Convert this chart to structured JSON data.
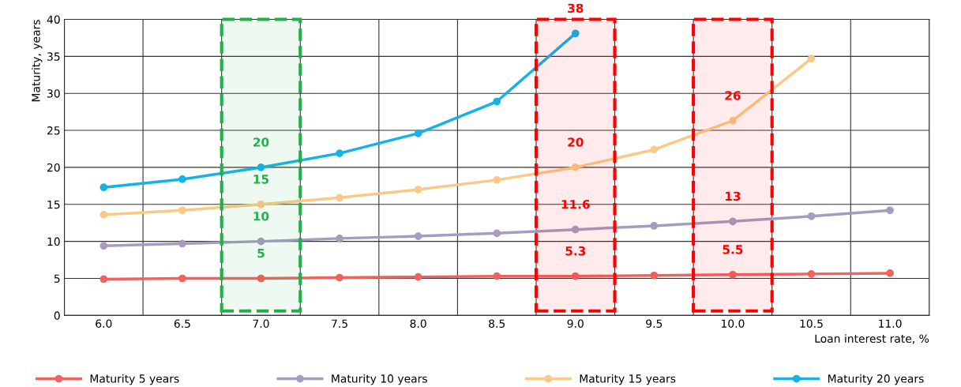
{
  "chart_data": {
    "type": "line",
    "x": [
      6.0,
      6.5,
      7.0,
      7.5,
      8.0,
      8.5,
      9.0,
      9.5,
      10.0,
      10.5,
      11.0
    ],
    "series": [
      {
        "name": "Maturity 5 years",
        "color": "#f0625f",
        "values": [
          4.9,
          5.0,
          5.0,
          5.1,
          5.2,
          5.3,
          5.3,
          5.4,
          5.5,
          5.6,
          5.7
        ]
      },
      {
        "name": "Maturity 10 years",
        "color": "#a89bc0",
        "values": [
          9.4,
          9.7,
          10.0,
          10.4,
          10.7,
          11.1,
          11.6,
          12.1,
          12.7,
          13.4,
          14.2
        ]
      },
      {
        "name": "Maturity 15 years",
        "color": "#fbc985",
        "values": [
          13.6,
          14.2,
          15.0,
          15.9,
          17.0,
          18.3,
          20.0,
          22.4,
          26.3,
          34.7,
          null
        ]
      },
      {
        "name": "Maturity 20 years",
        "color": "#13b2e8",
        "values": [
          17.3,
          18.4,
          20.0,
          21.9,
          24.6,
          28.9,
          38.1,
          null,
          null,
          null,
          null
        ]
      }
    ],
    "xlabel": "Loan interest rate, %",
    "ylabel": "Maturity, years",
    "xlim": [
      5.75,
      11.25
    ],
    "xticks": [
      {
        "value": 5.75,
        "label": null
      },
      {
        "value": 6,
        "label": "6.0"
      },
      {
        "value": 6.25,
        "label": null
      },
      6.5,
      {
        "value": 6.75,
        "label": null
      },
      {
        "value": 7,
        "label": "7.0"
      },
      {
        "value": 7.25,
        "label": null
      },
      7.5,
      {
        "value": 7.75,
        "label": null
      },
      {
        "value": 8,
        "label": "8.0"
      },
      {
        "value": 8.25,
        "label": null
      },
      8.5,
      {
        "value": 8.75,
        "label": null
      },
      {
        "value": 9,
        "label": "9.0"
      },
      {
        "value": 9.25,
        "label": null
      },
      9.5,
      {
        "value": 9.75,
        "label": null
      },
      {
        "value": 10,
        "label": "10.0"
      },
      {
        "value": 10.25,
        "label": null
      },
      10.5,
      {
        "value": 10.75,
        "label": null
      },
      {
        "value": 11,
        "label": "11.0"
      },
      {
        "value": 11.25,
        "label": null
      }
    ],
    "ylim": [
      0,
      40
    ],
    "yticks": [
      0,
      5,
      10,
      15,
      20,
      25,
      30,
      35,
      40
    ],
    "grid": true,
    "legend": "bottom",
    "marker": "circle",
    "line_style": "solid",
    "bands": [
      {
        "axis": "x",
        "from": 6.75,
        "to": 7.25,
        "color": "#1fb04b"
      },
      {
        "axis": "x",
        "from": 8.75,
        "to": 9.25,
        "color": "#ff0000"
      },
      {
        "axis": "x",
        "from": 9.75,
        "to": 10.25,
        "color": "#ff0000"
      }
    ],
    "annotations": [
      {
        "text": "20",
        "x": 7.0,
        "y": 20.0
      },
      {
        "text": "15",
        "x": 7.0,
        "y": 15.0
      },
      {
        "text": "10",
        "x": 7.0,
        "y": 10.0
      },
      {
        "text": "5",
        "x": 7.0,
        "y": 5.0
      },
      {
        "text": "38",
        "x": 9.0,
        "y": 38.1
      },
      {
        "text": "20",
        "x": 9.0,
        "y": 20.0
      },
      {
        "text": "11.6",
        "x": 9.0,
        "y": 11.6
      },
      {
        "text": "5.3",
        "x": 9.0,
        "y": 5.3
      },
      {
        "text": "26",
        "x": 10.0,
        "y": 26.3
      },
      {
        "text": "13",
        "x": 10.0,
        "y": 12.7
      },
      {
        "text": "5.5",
        "x": 10.0,
        "y": 5.5
      }
    ]
  }
}
